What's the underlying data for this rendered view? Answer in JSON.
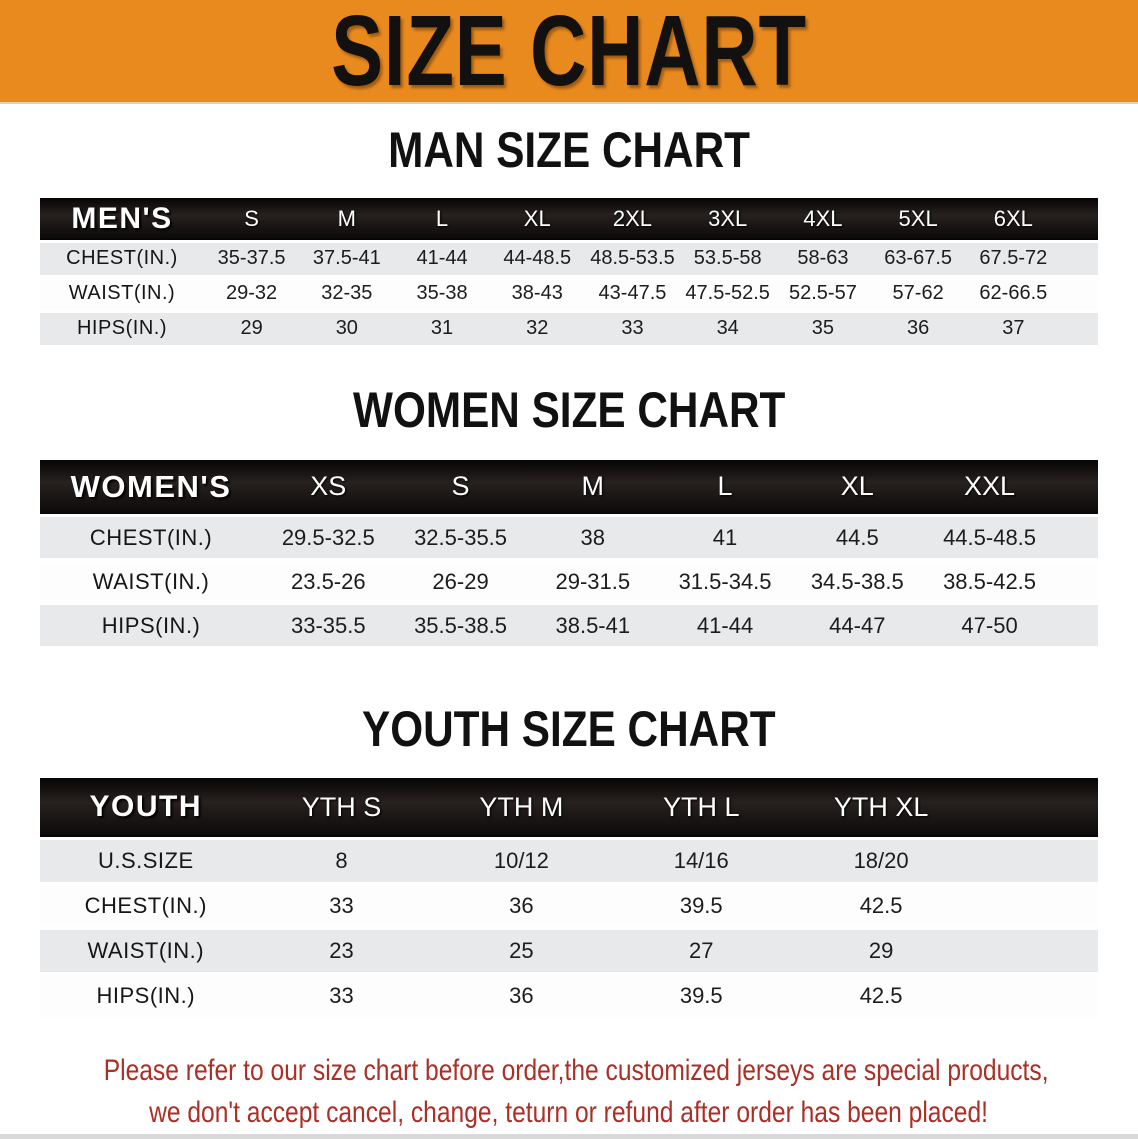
{
  "banner": {
    "title": "SIZE CHART",
    "bg_color": "#E98A1E"
  },
  "colors": {
    "header_dark": "#151111",
    "row_alt": "#E7E9EA",
    "disclaimer_red": "#AC2F26"
  },
  "sections": [
    {
      "title": "MAN SIZE CHART",
      "header_label": "MEN'S",
      "columns": [
        "S",
        "M",
        "L",
        "XL",
        "2XL",
        "3XL",
        "4XL",
        "5XL",
        "6XL"
      ],
      "rows": [
        {
          "label": "CHEST(IN.)",
          "values": [
            "35-37.5",
            "37.5-41",
            "41-44",
            "44-48.5",
            "48.5-53.5",
            "53.5-58",
            "58-63",
            "63-67.5",
            "67.5-72"
          ]
        },
        {
          "label": "WAIST(IN.)",
          "values": [
            "29-32",
            "32-35",
            "35-38",
            "38-43",
            "43-47.5",
            "47.5-52.5",
            "52.5-57",
            "57-62",
            "62-66.5"
          ]
        },
        {
          "label": "HIPS(IN.)",
          "values": [
            "29",
            "30",
            "31",
            "32",
            "33",
            "34",
            "35",
            "36",
            "37"
          ]
        }
      ]
    },
    {
      "title": "WOMEN SIZE CHART",
      "header_label": "WOMEN'S",
      "columns": [
        "XS",
        "S",
        "M",
        "L",
        "XL",
        "XXL"
      ],
      "rows": [
        {
          "label": "CHEST(IN.)",
          "values": [
            "29.5-32.5",
            "32.5-35.5",
            "38",
            "41",
            "44.5",
            "44.5-48.5"
          ]
        },
        {
          "label": "WAIST(IN.)",
          "values": [
            "23.5-26",
            "26-29",
            "29-31.5",
            "31.5-34.5",
            "34.5-38.5",
            "38.5-42.5"
          ]
        },
        {
          "label": "HIPS(IN.)",
          "values": [
            "33-35.5",
            "35.5-38.5",
            "38.5-41",
            "41-44",
            "44-47",
            "47-50"
          ]
        }
      ]
    },
    {
      "title": "YOUTH SIZE CHART",
      "header_label": "YOUTH",
      "columns": [
        "YTH S",
        "YTH M",
        "YTH L",
        "YTH XL"
      ],
      "rows": [
        {
          "label": "U.S.SIZE",
          "values": [
            "8",
            "10/12",
            "14/16",
            "18/20"
          ]
        },
        {
          "label": "CHEST(IN.)",
          "values": [
            "33",
            "36",
            "39.5",
            "42.5"
          ]
        },
        {
          "label": "WAIST(IN.)",
          "values": [
            "23",
            "25",
            "27",
            "29"
          ]
        },
        {
          "label": "HIPS(IN.)",
          "values": [
            "33",
            "36",
            "39.5",
            "42.5"
          ]
        }
      ]
    }
  ],
  "disclaimer": {
    "line1": "Please refer to our size chart before order,the customized jerseys are special products,",
    "line2": "we don't accept cancel, change, teturn or refund after order has been placed!"
  }
}
